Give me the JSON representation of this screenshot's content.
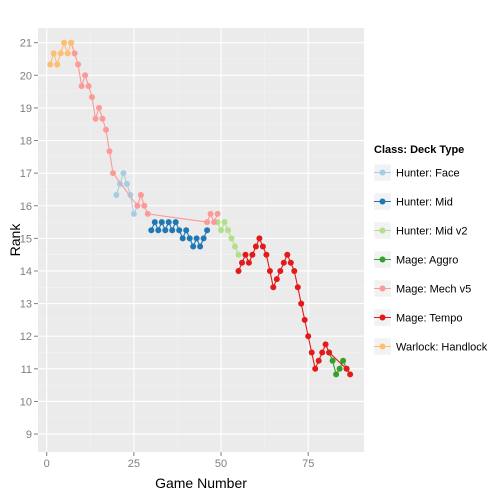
{
  "chart_data": {
    "type": "line",
    "xlabel": "Game Number",
    "ylabel": "Rank",
    "xlim": [
      -2.5,
      91
    ],
    "ylim": [
      8.45,
      21.45
    ],
    "x_ticks": [
      0,
      25,
      50,
      75
    ],
    "y_ticks": [
      9,
      10,
      11,
      12,
      13,
      14,
      15,
      16,
      17,
      18,
      19,
      20,
      21
    ],
    "grid": true,
    "legend_position": "right",
    "legend_title": "Class: Deck Type",
    "series": [
      {
        "name": "Hunter: Face",
        "color": "#a6cee3",
        "points": [
          [
            20,
            16.33
          ],
          [
            21,
            16.67
          ],
          [
            22,
            17
          ],
          [
            23,
            16.67
          ],
          [
            24,
            16.33
          ],
          [
            25,
            15.75
          ],
          [
            26,
            16
          ]
        ]
      },
      {
        "name": "Hunter: Mid",
        "color": "#1f78b4",
        "points": [
          [
            30,
            15.25
          ],
          [
            31,
            15.5
          ],
          [
            32,
            15.25
          ],
          [
            33,
            15.5
          ],
          [
            34,
            15.25
          ],
          [
            35,
            15.5
          ],
          [
            36,
            15.25
          ],
          [
            37,
            15.5
          ],
          [
            38,
            15.25
          ],
          [
            39,
            15
          ],
          [
            40,
            15.25
          ],
          [
            41,
            15
          ],
          [
            42,
            14.75
          ],
          [
            43,
            15
          ],
          [
            44,
            14.75
          ],
          [
            45,
            15
          ],
          [
            46,
            15.25
          ]
        ]
      },
      {
        "name": "Hunter: Mid v2",
        "color": "#b2df8a",
        "points": [
          [
            49,
            15.5
          ],
          [
            50,
            15.25
          ],
          [
            51,
            15.5
          ],
          [
            52,
            15.25
          ],
          [
            53,
            15
          ],
          [
            54,
            14.75
          ],
          [
            55,
            14.5
          ]
        ]
      },
      {
        "name": "Mage: Aggro",
        "color": "#33a02c",
        "points": [
          [
            81,
            11.5
          ],
          [
            82,
            11.25
          ],
          [
            83,
            10.83
          ],
          [
            84,
            11
          ],
          [
            85,
            11.25
          ],
          [
            86,
            11
          ]
        ]
      },
      {
        "name": "Mage: Mech v5",
        "color": "#fb9a99",
        "points": [
          [
            7,
            21
          ],
          [
            8,
            20.67
          ],
          [
            9,
            20.33
          ],
          [
            10,
            19.67
          ],
          [
            11,
            20
          ],
          [
            12,
            19.67
          ],
          [
            13,
            19.33
          ],
          [
            14,
            18.67
          ],
          [
            15,
            19
          ],
          [
            16,
            18.67
          ],
          [
            17,
            18.33
          ],
          [
            18,
            17.67
          ],
          [
            19,
            17
          ],
          [
            26,
            16
          ],
          [
            27,
            16.33
          ],
          [
            28,
            16
          ],
          [
            29,
            15.75
          ],
          [
            46,
            15.5
          ],
          [
            47,
            15.75
          ],
          [
            48,
            15.5
          ],
          [
            49,
            15.75
          ]
        ]
      },
      {
        "name": "Mage: Tempo",
        "color": "#e31a1c",
        "points": [
          [
            55,
            14
          ],
          [
            56,
            14.25
          ],
          [
            57,
            14.5
          ],
          [
            58,
            14.25
          ],
          [
            59,
            14.5
          ],
          [
            60,
            14.75
          ],
          [
            61,
            15
          ],
          [
            62,
            14.75
          ],
          [
            63,
            14.5
          ],
          [
            64,
            14
          ],
          [
            65,
            13.5
          ],
          [
            66,
            13.75
          ],
          [
            67,
            14
          ],
          [
            68,
            14.25
          ],
          [
            69,
            14.5
          ],
          [
            70,
            14.25
          ],
          [
            71,
            14
          ],
          [
            72,
            13.5
          ],
          [
            73,
            13
          ],
          [
            74,
            12.5
          ],
          [
            75,
            12
          ],
          [
            76,
            11.5
          ],
          [
            77,
            11
          ],
          [
            78,
            11.25
          ],
          [
            79,
            11.5
          ],
          [
            80,
            11.75
          ],
          [
            81,
            11.5
          ],
          [
            86,
            11
          ],
          [
            87,
            10.83
          ]
        ]
      },
      {
        "name": "Warlock: Handlock",
        "color": "#fdbf6f",
        "points": [
          [
            1,
            20.33
          ],
          [
            2,
            20.67
          ],
          [
            3,
            20.33
          ],
          [
            4,
            20.67
          ],
          [
            5,
            21
          ],
          [
            6,
            20.67
          ],
          [
            7,
            21
          ]
        ]
      }
    ]
  }
}
